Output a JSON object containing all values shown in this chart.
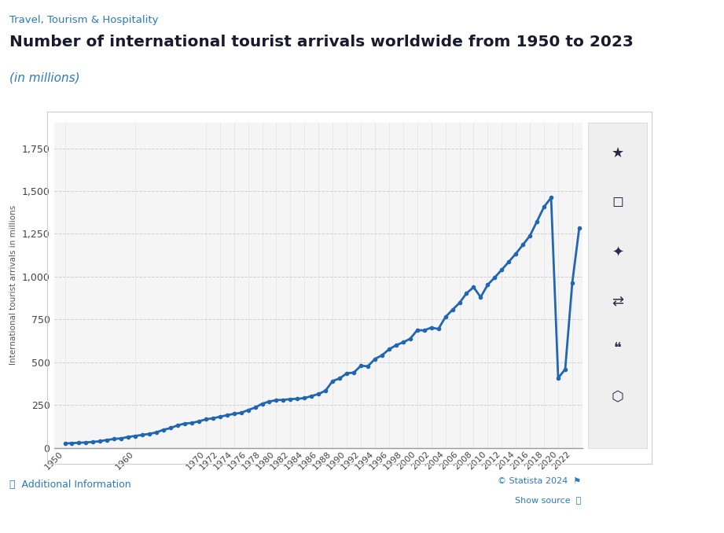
{
  "years": [
    1950,
    1951,
    1952,
    1953,
    1954,
    1955,
    1956,
    1957,
    1958,
    1959,
    1960,
    1961,
    1962,
    1963,
    1964,
    1965,
    1966,
    1967,
    1968,
    1969,
    1970,
    1971,
    1972,
    1973,
    1974,
    1975,
    1976,
    1977,
    1978,
    1979,
    1980,
    1981,
    1982,
    1983,
    1984,
    1985,
    1986,
    1987,
    1988,
    1989,
    1990,
    1991,
    1992,
    1993,
    1994,
    1995,
    1996,
    1997,
    1998,
    1999,
    2000,
    2001,
    2002,
    2003,
    2004,
    2005,
    2006,
    2007,
    2008,
    2009,
    2010,
    2011,
    2012,
    2013,
    2014,
    2015,
    2016,
    2017,
    2018,
    2019,
    2020,
    2021,
    2022,
    2023
  ],
  "values": [
    25,
    27,
    29,
    31,
    34,
    38,
    46,
    51,
    55,
    63,
    69,
    75,
    81,
    90,
    105,
    115,
    131,
    141,
    145,
    154,
    166,
    172,
    181,
    190,
    198,
    204,
    220,
    235,
    257,
    270,
    278,
    280,
    284,
    286,
    290,
    302,
    314,
    334,
    390,
    405,
    435,
    439,
    479,
    476,
    519,
    540,
    575,
    599,
    616,
    637,
    687,
    686,
    702,
    694,
    763,
    806,
    846,
    903,
    938,
    880,
    952,
    995,
    1040,
    1087,
    1134,
    1186,
    1239,
    1323,
    1408,
    1461,
    407,
    459,
    963,
    1286
  ],
  "line_color": "#2166b0",
  "line_width": 2.0,
  "marker_style": "o",
  "marker_size": 3.0,
  "bg_color": "#ffffff",
  "plot_bg_color": "#f5f5f5",
  "grid_color": "#d0d0d0",
  "title_main": "Number of international tourist arrivals worldwide from 1950 to 2023",
  "title_sub": "(in millions)",
  "category_label": "Travel, Tourism & Hospitality",
  "ylabel": "International tourist arrivals in millions",
  "ylim": [
    0,
    1900
  ],
  "yticks": [
    0,
    250,
    500,
    750,
    1000,
    1250,
    1500,
    1750
  ],
  "ytick_labels": [
    "0",
    "250",
    "500",
    "750",
    "1,000",
    "1,250",
    "1,500",
    "1,750"
  ],
  "xtick_labels": [
    "1950",
    "1960",
    "1970",
    "1972",
    "1974",
    "1976",
    "1978",
    "1980",
    "1982",
    "1984",
    "1986",
    "1988",
    "1990",
    "1992",
    "1994",
    "1996",
    "1998",
    "2000",
    "2002",
    "2004",
    "2006",
    "2008",
    "2010",
    "2012",
    "2014",
    "2016",
    "2018",
    "2020",
    "2022"
  ],
  "footer_left": "ⓘ  Additional Information",
  "footer_right1": "© Statista 2024  ⚑",
  "footer_right2": "Show source  ⓘ",
  "right_panel_color": "#efefef",
  "right_border_color": "#dddddd"
}
